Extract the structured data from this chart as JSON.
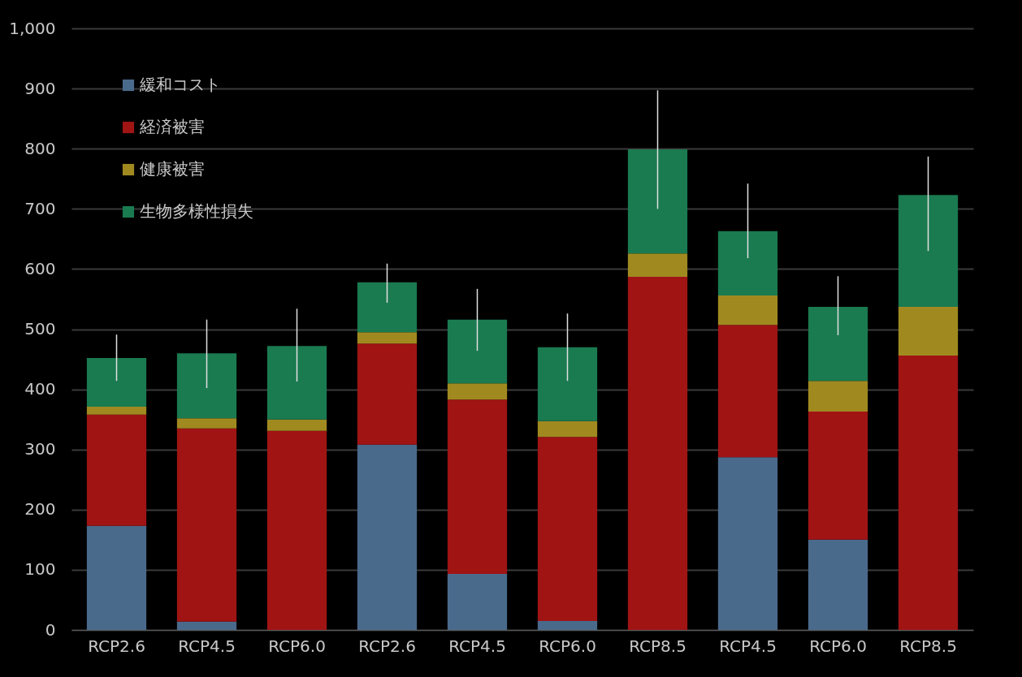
{
  "chart_data": {
    "type": "bar",
    "stacked": true,
    "categories": [
      "RCP2.6",
      "RCP4.5",
      "RCP6.0",
      "RCP2.6",
      "RCP4.5",
      "RCP6.0",
      "RCP8.5",
      "RCP4.5",
      "RCP6.0",
      "RCP8.5"
    ],
    "series": [
      {
        "name": "緩和コスト",
        "color": "#4a6a8c",
        "values": [
          173,
          14,
          0,
          308,
          93,
          15,
          0,
          287,
          150,
          0
        ]
      },
      {
        "name": "経済被害",
        "color": "#a01414",
        "values": [
          185,
          321,
          331,
          168,
          290,
          306,
          587,
          220,
          213,
          456
        ]
      },
      {
        "name": "健康被害",
        "color": "#a08a20",
        "values": [
          13,
          17,
          19,
          19,
          27,
          26,
          39,
          49,
          51,
          81
        ]
      },
      {
        "name": "生物多様性損失",
        "color": "#1a7a50",
        "values": [
          81,
          108,
          122,
          83,
          106,
          123,
          173,
          107,
          123,
          186
        ],
        "errors": [
          [
            414,
            491
          ],
          [
            402,
            516
          ],
          [
            413,
            534
          ],
          [
            544,
            609
          ],
          [
            464,
            567
          ],
          [
            414,
            526
          ],
          [
            700,
            897
          ],
          [
            618,
            742
          ],
          [
            490,
            588
          ],
          [
            630,
            787
          ]
        ]
      }
    ],
    "ylim": [
      0,
      1000
    ],
    "yticks": [
      0,
      100,
      200,
      300,
      400,
      500,
      600,
      700,
      800,
      900,
      {
        "value": 1000,
        "label": "1,000"
      }
    ],
    "grid": "y",
    "legend": "top left"
  }
}
